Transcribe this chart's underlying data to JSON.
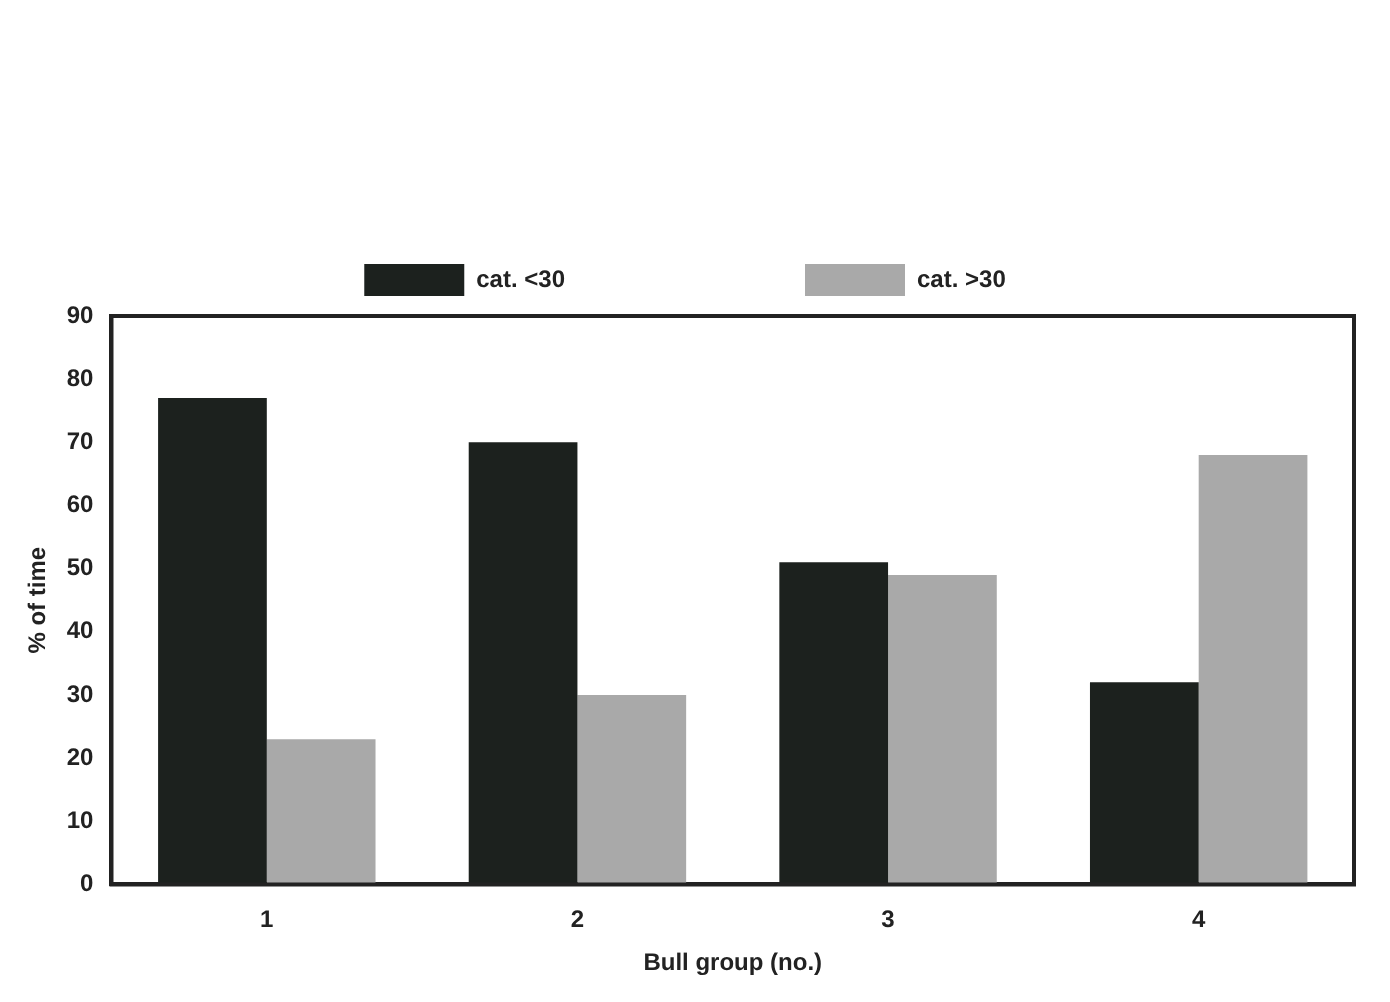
{
  "chart_data": {
    "type": "bar",
    "xlabel": "Bull group (no.)",
    "ylabel": "% of time",
    "categories": [
      "1",
      "2",
      "3",
      "4"
    ],
    "series": [
      {
        "name": "cat. <30",
        "color": "#1c211e",
        "values": [
          77,
          70,
          51,
          32
        ]
      },
      {
        "name": "cat. >30",
        "color": "#a9a9a9",
        "values": [
          23,
          30,
          49,
          68
        ]
      }
    ],
    "ylim": [
      0,
      90
    ],
    "yticks": [
      0,
      10,
      20,
      30,
      40,
      50,
      60,
      70,
      80,
      90
    ],
    "grid": false,
    "legend": "top"
  }
}
